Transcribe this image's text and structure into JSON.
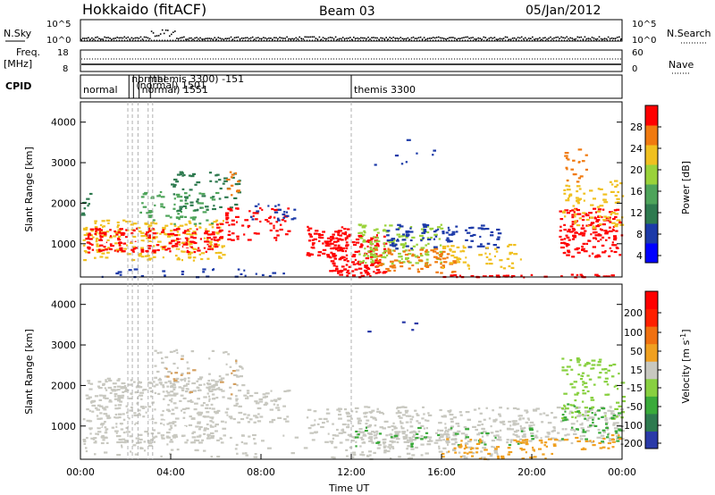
{
  "header": {
    "station": "Hokkaido (fitACF)",
    "beam": "Beam 03",
    "date": "05/Jan/2012"
  },
  "panels": {
    "nsky": {
      "left_label": "N.Sky",
      "right_label": "N.Search",
      "left_ticks": [
        "10^5",
        "10^0"
      ],
      "right_ticks": [
        "10^5",
        "10^0"
      ]
    },
    "freq": {
      "left_label_1": "Freq.",
      "left_label_2": "[MHz]",
      "right_label": "Nave",
      "left_ticks": [
        "18",
        "8"
      ],
      "right_ticks": [
        "60",
        "0"
      ]
    },
    "cpid": {
      "label": "CPID",
      "entries": [
        {
          "time_h": 0.0,
          "text": "normal"
        },
        {
          "time_h": 2.15,
          "text": "normal"
        },
        {
          "time_h": 2.35,
          "text": "(normal) 1501"
        },
        {
          "time_h": 2.6,
          "text": "normal) 1551"
        },
        {
          "time_h": 3.1,
          "text": "themis 3300) -151"
        },
        {
          "time_h": 12.0,
          "text": "themis 3300"
        }
      ]
    }
  },
  "chart_data": [
    {
      "type": "heatmap",
      "name": "power",
      "ylabel": "Slant Range [km]",
      "colorbar_label": "Power [dB]",
      "colorbar_ticks": [
        "28",
        "24",
        "20",
        "16",
        "12",
        "8",
        "4"
      ],
      "colors": [
        "#0000ff",
        "#1c3aa8",
        "#2e7a4f",
        "#4ea45a",
        "#9ad23a",
        "#f0c020",
        "#f07a10",
        "#ff0000"
      ],
      "xlim_h": [
        0,
        24
      ],
      "ylim_km": [
        180,
        4500
      ],
      "yticks": [
        "1000",
        "2000",
        "3000",
        "4000"
      ]
    },
    {
      "type": "heatmap",
      "name": "velocity",
      "ylabel": "Slant Range [km]",
      "colorbar_label": "Velocity [m s^-1]",
      "colorbar_ticks": [
        "200",
        "100",
        "50",
        "15",
        "-15",
        "-50",
        "-100",
        "-200"
      ],
      "colors": [
        "#2a3aa8",
        "#2e7a4f",
        "#3aaa3a",
        "#88d040",
        "#c8c8c0",
        "#f0a020",
        "#f07010",
        "#ff2000",
        "#ff0000"
      ],
      "xlim_h": [
        0,
        24
      ],
      "ylim_km": [
        180,
        4500
      ],
      "yticks": [
        "1000",
        "2000",
        "3000",
        "4000"
      ]
    }
  ],
  "axis": {
    "xlabel": "Time UT",
    "xticks": [
      "00:00",
      "04:00",
      "08:00",
      "12:00",
      "16:00",
      "20:00",
      "00:00"
    ]
  }
}
